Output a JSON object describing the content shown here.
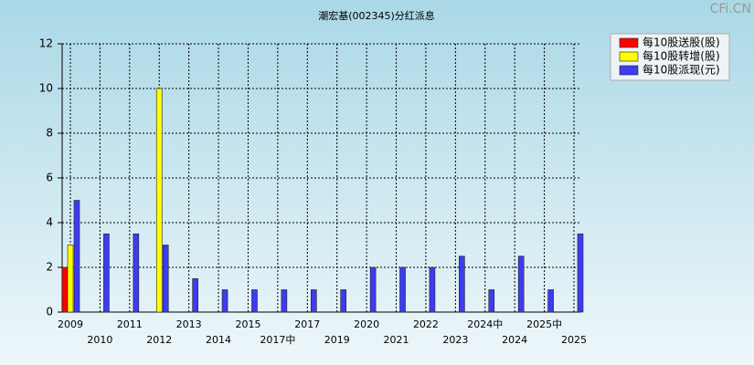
{
  "chart_data": {
    "type": "bar",
    "title": "潮宏基(002345)分红派息",
    "watermark": "CFi.CN",
    "categories": [
      "2009",
      "2010",
      "2011",
      "2012",
      "2013",
      "2014",
      "2015",
      "2017中",
      "2017",
      "2019",
      "2020",
      "2021",
      "2022",
      "2023",
      "2024中",
      "2024",
      "2025中",
      "2025"
    ],
    "series": [
      {
        "name": "每10股送股(股)",
        "color": "#ff0000",
        "values": [
          2,
          null,
          null,
          null,
          null,
          null,
          null,
          null,
          null,
          null,
          null,
          null,
          null,
          null,
          null,
          null,
          null,
          null
        ]
      },
      {
        "name": "每10股转增(股)",
        "color": "#ffff00",
        "values": [
          3,
          null,
          null,
          10,
          null,
          null,
          null,
          null,
          null,
          null,
          null,
          null,
          null,
          null,
          null,
          null,
          null,
          null
        ]
      },
      {
        "name": "每10股派现(元)",
        "color": "#3c3cf0",
        "values": [
          5,
          3.5,
          3.5,
          3,
          1.5,
          1,
          1,
          1,
          1,
          1,
          2,
          2,
          2,
          2.5,
          1,
          2.5,
          1,
          3.5
        ]
      }
    ],
    "ylim": [
      0,
      12
    ],
    "yticks": [
      0,
      2,
      4,
      6,
      8,
      10,
      12
    ],
    "grid": true,
    "legend": "top-right"
  }
}
